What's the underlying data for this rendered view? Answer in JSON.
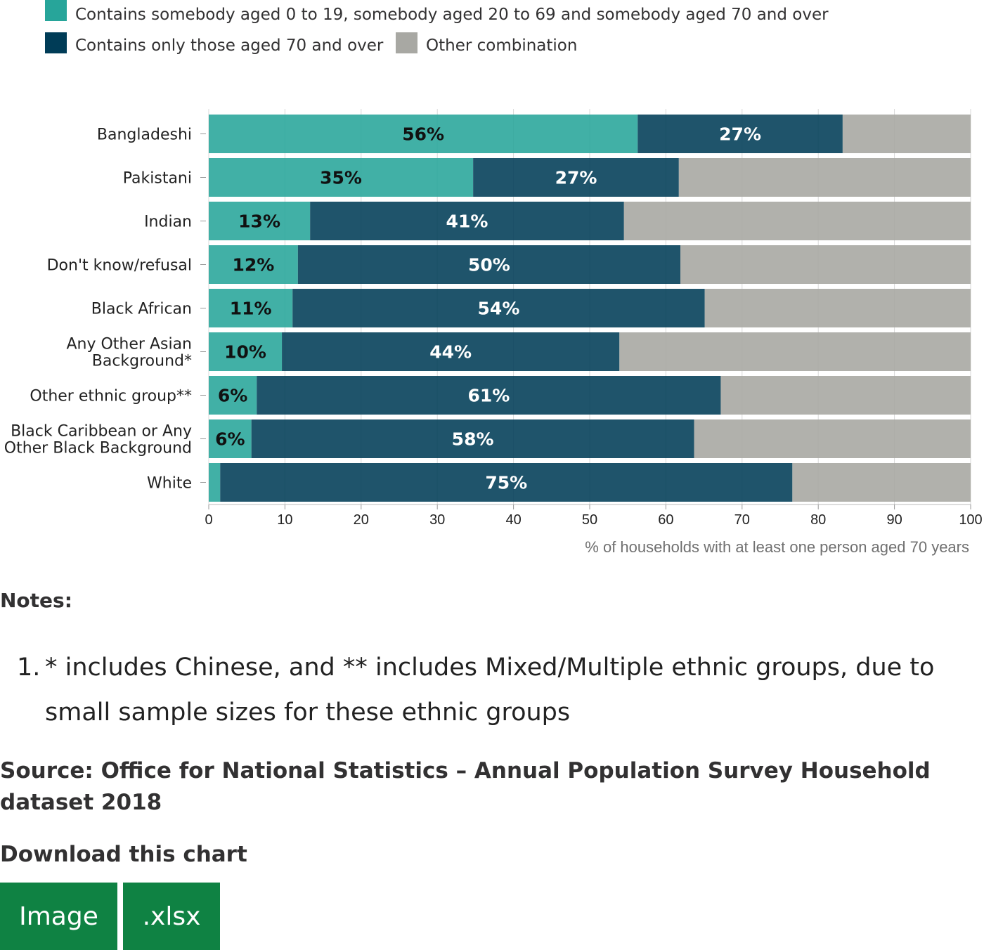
{
  "legend": [
    {
      "label": "Contains somebody aged 0 to 19, somebody aged 20 to 69 and somebody aged 70 and over",
      "color": "#27a59a"
    },
    {
      "label": "Contains only those aged 70 and over",
      "color": "#003c57"
    },
    {
      "label": "Other combination",
      "color": "#a8a8a3"
    }
  ],
  "chart_data": {
    "type": "bar",
    "orientation": "horizontal",
    "stacked": true,
    "categories": [
      [
        "Bangladeshi"
      ],
      [
        "Pakistani"
      ],
      [
        "Indian"
      ],
      [
        "Don't know/refusal"
      ],
      [
        "Black African"
      ],
      [
        "Any Other Asian",
        "Background*"
      ],
      [
        "Other ethnic group**"
      ],
      [
        "Black Caribbean or Any",
        "Other Black Background"
      ],
      [
        "White"
      ]
    ],
    "series": [
      {
        "name": "Contains somebody aged 0 to 19, somebody aged 20 to 69 and somebody aged 70 and over",
        "color": "#27a59a",
        "values": [
          56.3,
          34.7,
          13.3,
          11.7,
          11.0,
          9.6,
          6.3,
          5.6,
          1.5
        ],
        "labels": [
          "56%",
          "35%",
          "13%",
          "12%",
          "11%",
          "10%",
          "6%",
          "6%",
          ""
        ]
      },
      {
        "name": "Contains only those aged 70 and over",
        "color": "#003c57",
        "values": [
          26.9,
          27.0,
          41.2,
          50.2,
          54.1,
          44.3,
          60.9,
          58.1,
          75.1
        ],
        "labels": [
          "27%",
          "27%",
          "41%",
          "50%",
          "54%",
          "44%",
          "61%",
          "58%",
          "75%"
        ]
      },
      {
        "name": "Other combination",
        "color": "#a8a8a3",
        "values": [
          16.8,
          38.3,
          45.5,
          38.1,
          34.9,
          46.1,
          32.8,
          36.3,
          23.4
        ],
        "labels": [
          "",
          "",
          "",
          "",
          "",
          "",
          "",
          "",
          ""
        ]
      }
    ],
    "xlim": [
      0,
      100
    ],
    "xticks": [
      0,
      10,
      20,
      30,
      40,
      50,
      60,
      70,
      80,
      90,
      100
    ],
    "xlabel": "% of households with at least one person aged 70 years",
    "grid": true,
    "legend_position": "top"
  },
  "notes": {
    "title": "Notes:",
    "items": [
      {
        "num": "1.",
        "text": "* includes Chinese, and ** includes Mixed/Multiple ethnic groups, due to small sample sizes for these ethnic groups"
      }
    ]
  },
  "source": "Source: Office for National Statistics – Annual Population Survey Household dataset 2018",
  "download": {
    "title": "Download this chart",
    "image_label": "Image",
    "xlsx_label": ".xlsx"
  }
}
